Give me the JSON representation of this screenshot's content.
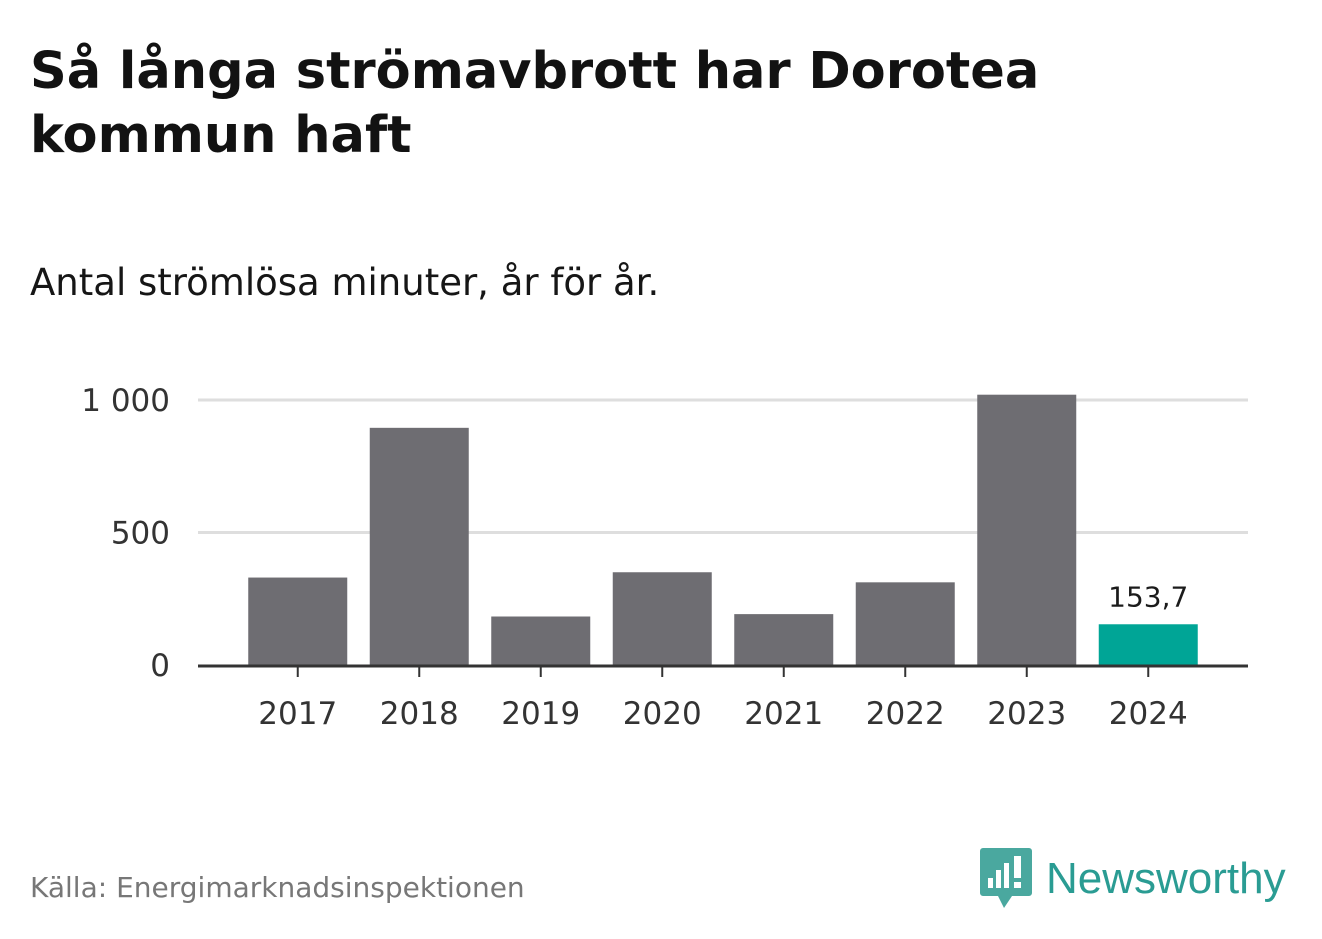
{
  "title": "Så långa strömavbrott har Dorotea kommun haft",
  "subtitle": "Antal strömlösa minuter, år för år.",
  "source": "Källa: Energimarknadsinspektionen",
  "brand": {
    "name": "Newsworthy",
    "icon": "newsworthy-logo-icon",
    "color": "#2a9c93"
  },
  "colors": {
    "bar": "#6e6d72",
    "highlight": "#00a596",
    "grid": "#dedede",
    "axis": "#333333"
  },
  "chart_data": {
    "type": "bar",
    "title": "Så långa strömavbrott har Dorotea kommun haft",
    "subtitle": "Antal strömlösa minuter, år för år.",
    "xlabel": "",
    "ylabel": "",
    "categories": [
      "2017",
      "2018",
      "2019",
      "2020",
      "2021",
      "2022",
      "2023",
      "2024"
    ],
    "values": [
      330,
      895,
      183,
      350,
      192,
      312,
      1020,
      153.7
    ],
    "highlight_index": 7,
    "value_labels": [
      {
        "index": 7,
        "text": "153,7"
      }
    ],
    "yticks": [
      {
        "value": 0,
        "label": "0"
      },
      {
        "value": 500,
        "label": "500"
      },
      {
        "value": 1000,
        "label": "1 000"
      }
    ],
    "ylim": [
      0,
      1000
    ],
    "grid": true,
    "legend": "none"
  }
}
